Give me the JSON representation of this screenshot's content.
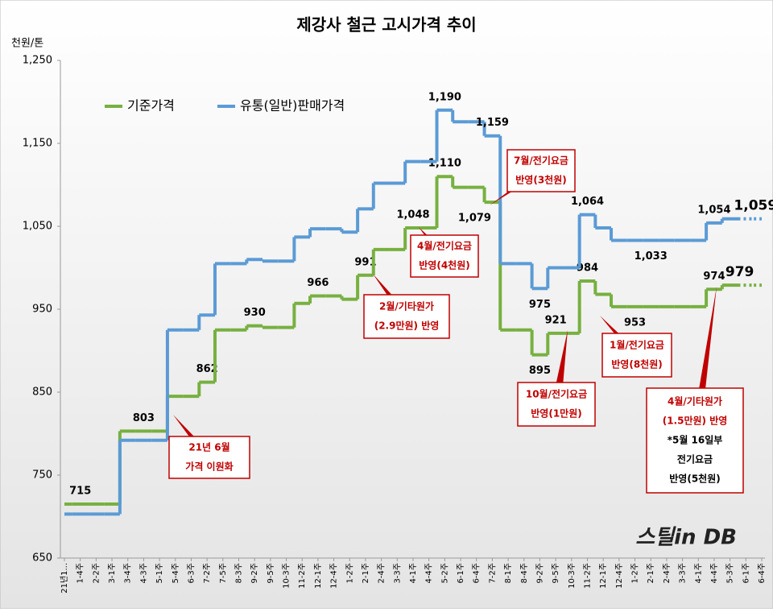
{
  "chart_data": {
    "type": "step",
    "title": "제강사 철근 고시가격 추이",
    "y_axis_label": "천원/톤",
    "categories": [
      "21년1...",
      "1-4주",
      "2-2주",
      "3-1주",
      "3-4주",
      "4-3주",
      "5-1주",
      "5-4주",
      "6-3주",
      "7-2주",
      "7-5주",
      "8-3주",
      "9-2주",
      "9-5주",
      "10-3주",
      "11-2주",
      "12-1주",
      "12-4주",
      "1-2주",
      "2-1주",
      "2-4주",
      "3-3주",
      "4-1주",
      "4-4주",
      "5-2주",
      "6-1주",
      "6-4주",
      "7-2주",
      "8-1주",
      "8-4주",
      "9-2주",
      "9-5주",
      "10-3주",
      "11-2주",
      "12-1주",
      "12-4주",
      "1-2주",
      "2-1주",
      "2-4주",
      "3-3주",
      "4-1주",
      "4-4주",
      "5-3주",
      "6-1주",
      "6-4주"
    ],
    "series": [
      {
        "name": "기준가격",
        "color": "#77b040",
        "values": [
          715,
          715,
          715,
          715,
          803,
          803,
          803,
          845,
          845,
          862,
          925,
          925,
          930,
          928,
          928,
          957,
          966,
          966,
          962,
          991,
          1022,
          1022,
          1048,
          1048,
          1110,
          1097,
          1097,
          1079,
          925,
          925,
          895,
          921,
          921,
          984,
          968,
          953,
          953,
          953,
          953,
          953,
          953,
          974,
          979,
          979,
          979
        ],
        "value_labels": [
          null,
          "715",
          null,
          null,
          null,
          "803",
          null,
          null,
          null,
          "862",
          null,
          null,
          "930",
          null,
          null,
          null,
          "966",
          null,
          null,
          "991",
          null,
          null,
          "1,048",
          null,
          "1,110",
          null,
          null,
          "1,079",
          null,
          null,
          "895",
          "921",
          null,
          "984",
          null,
          null,
          "953",
          null,
          null,
          null,
          null,
          "974",
          "979",
          null,
          null
        ]
      },
      {
        "name": "유통(일반)판매가격",
        "color": "#5b9bd5",
        "values": [
          703,
          703,
          703,
          703,
          792,
          792,
          792,
          925,
          925,
          943,
          1005,
          1005,
          1010,
          1008,
          1008,
          1037,
          1047,
          1047,
          1043,
          1071,
          1102,
          1102,
          1128,
          1128,
          1190,
          1176,
          1176,
          1159,
          1005,
          1005,
          975,
          1000,
          1000,
          1064,
          1048,
          1033,
          1033,
          1033,
          1033,
          1033,
          1033,
          1054,
          1059,
          1059,
          1059
        ],
        "value_labels": [
          null,
          null,
          null,
          null,
          null,
          null,
          null,
          null,
          null,
          null,
          null,
          null,
          null,
          null,
          null,
          null,
          null,
          null,
          null,
          null,
          null,
          null,
          null,
          null,
          "1,190",
          null,
          null,
          "1,159",
          null,
          null,
          "975",
          null,
          null,
          "1,064",
          null,
          null,
          null,
          "1,033",
          null,
          null,
          null,
          "1,054",
          null,
          "1,059",
          null
        ]
      }
    ],
    "ylim": [
      650,
      1250
    ],
    "yticks": [
      {
        "value": 650,
        "label": "650"
      },
      {
        "value": 750,
        "label": "750"
      },
      {
        "value": 850,
        "label": "850"
      },
      {
        "value": 950,
        "label": "950"
      },
      {
        "value": 1050,
        "label": "1,050"
      },
      {
        "value": 1150,
        "label": "1,150"
      },
      {
        "value": 1250,
        "label": "1,250"
      }
    ],
    "legend": "top-left",
    "annotations": [
      {
        "lines": [
          "21년 6월",
          "가격 이원화"
        ]
      },
      {
        "lines": [
          "2월/기타원가",
          "(2.9만원) 반영"
        ]
      },
      {
        "lines": [
          "4월/전기요금",
          "반영(4천원)"
        ]
      },
      {
        "lines": [
          "7월/전기요금",
          "반영(3천원)"
        ]
      },
      {
        "lines": [
          "10월/전기요금",
          "반영(1만원)"
        ]
      },
      {
        "lines": [
          "1월/전기요금",
          "반영(8천원)"
        ]
      },
      {
        "lines": [
          "4월/기타원가",
          "(1.5만원) 반영",
          "*5월 16일부",
          "전기요금",
          "반영(5천원)"
        ]
      }
    ],
    "logo": "스틸in DB"
  }
}
